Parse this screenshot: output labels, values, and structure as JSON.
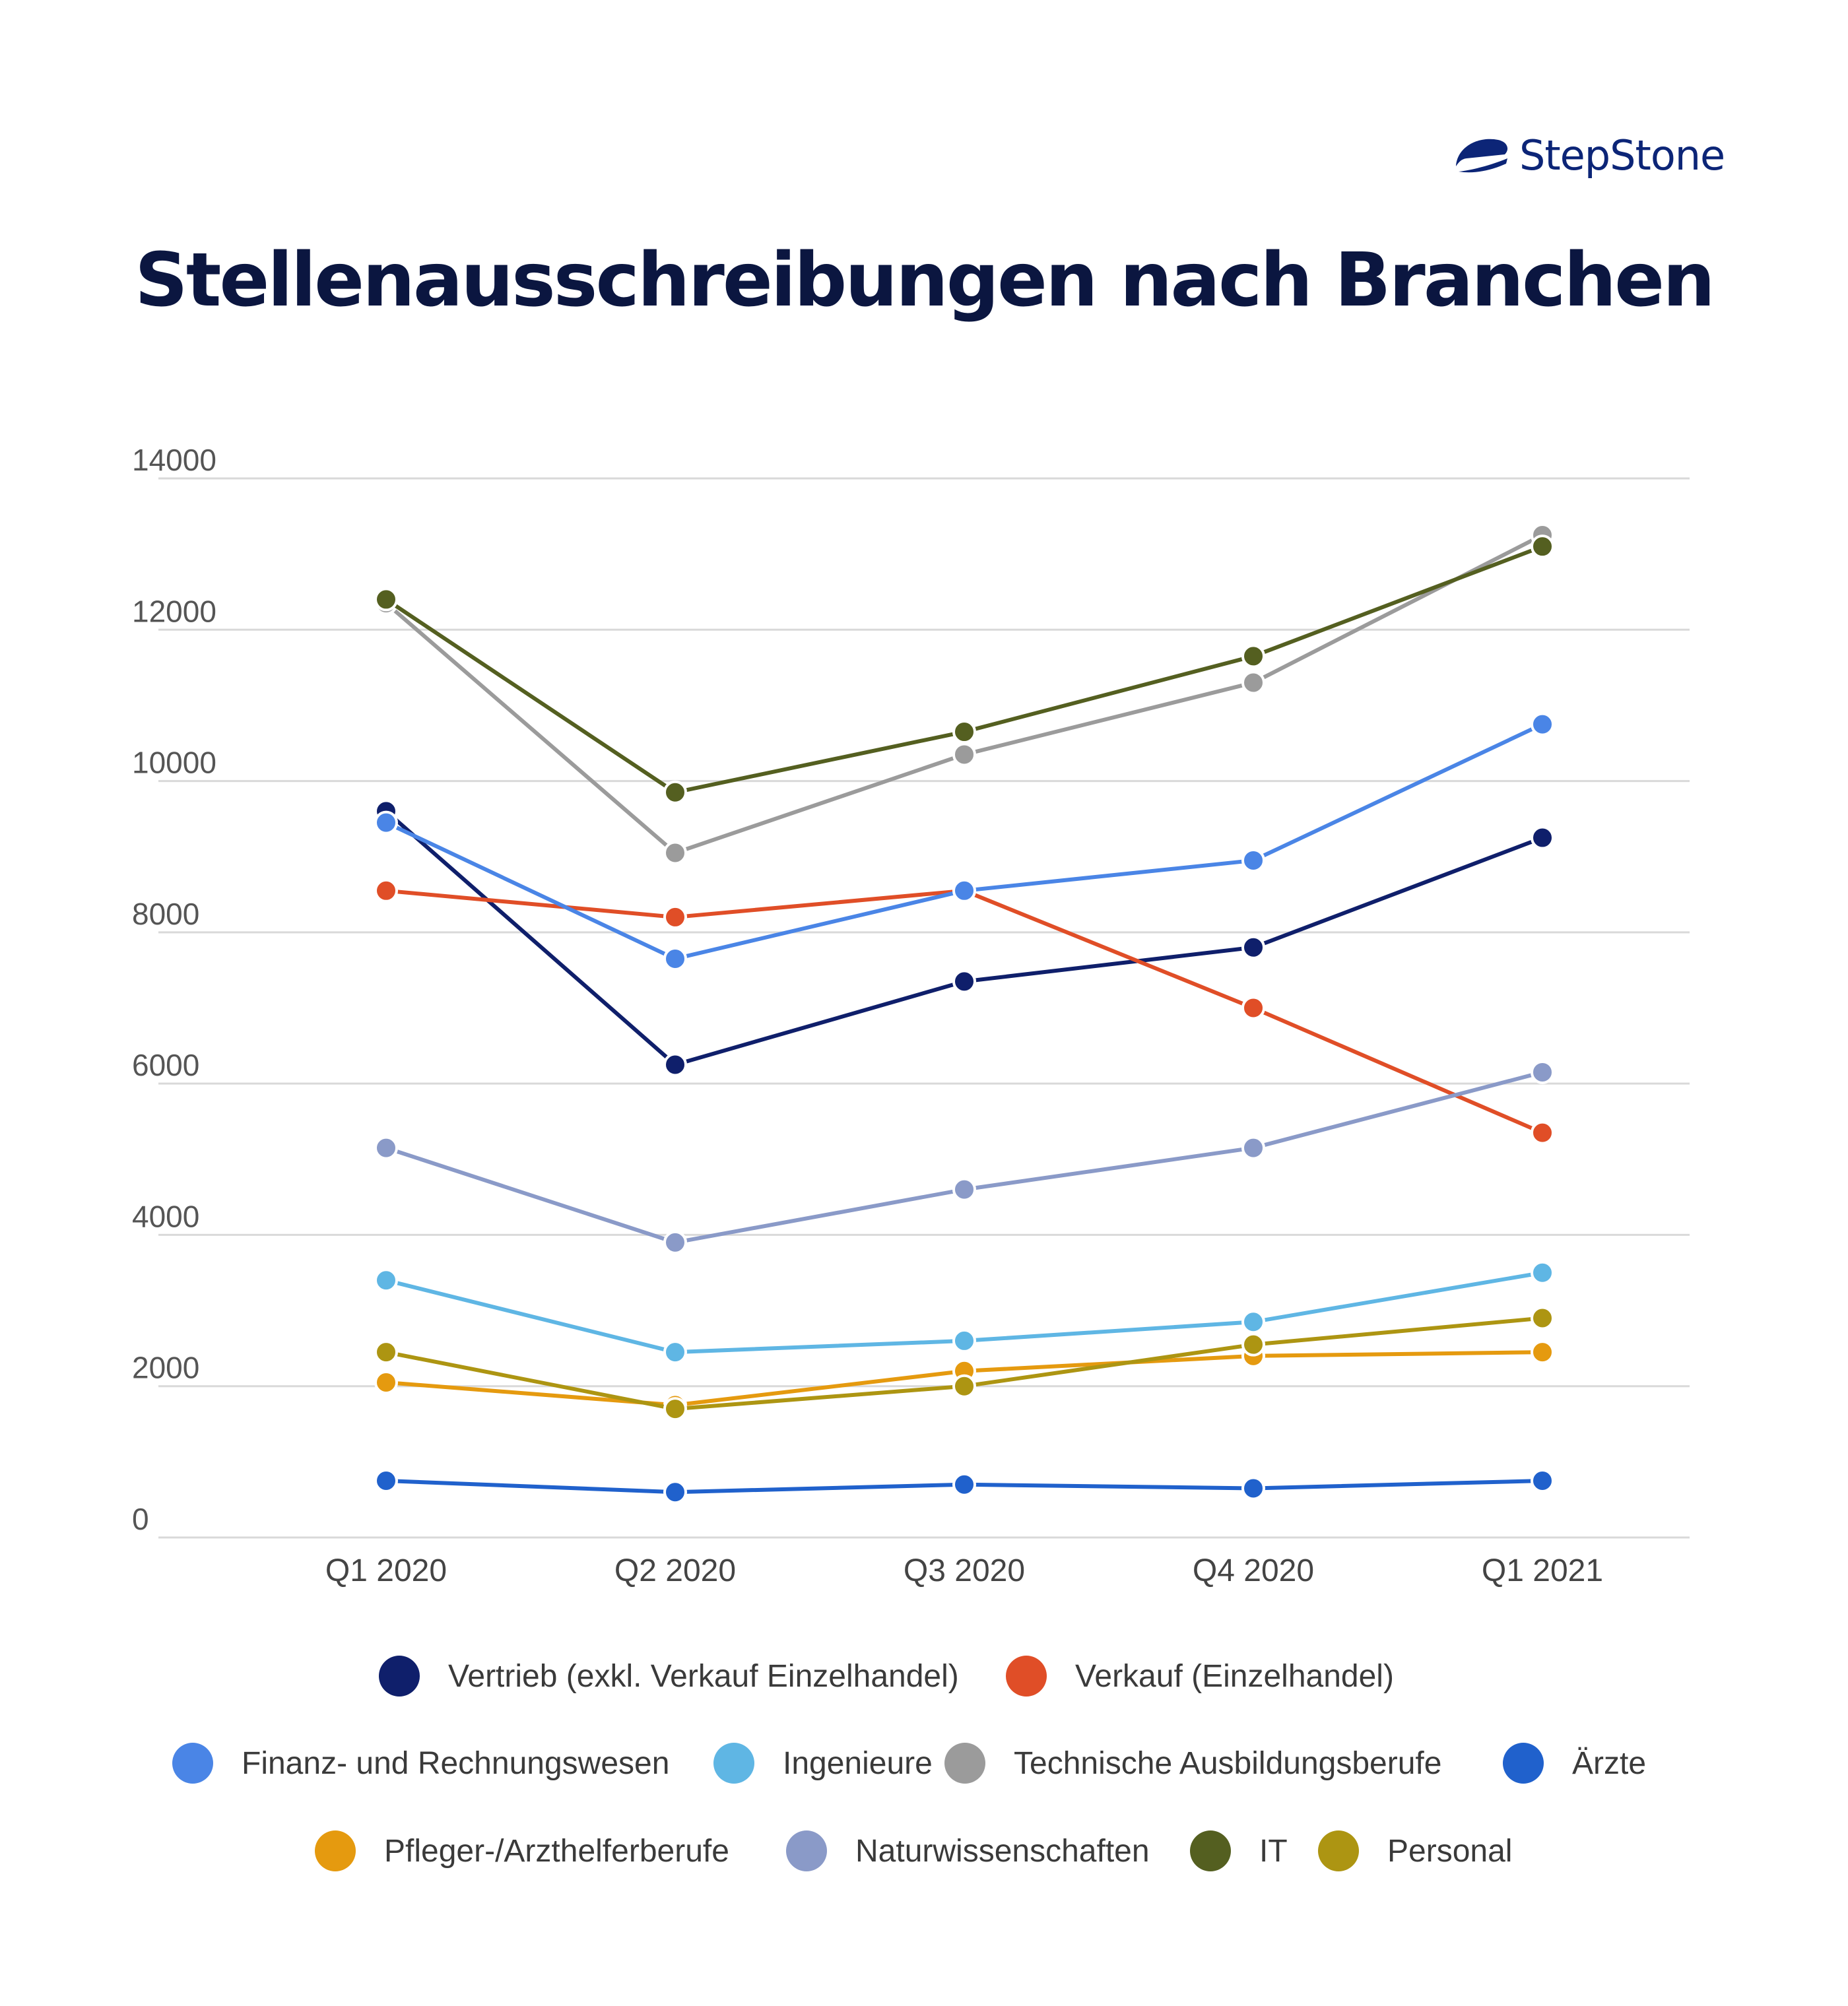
{
  "brand": {
    "name": "StepStone",
    "color": "#0c2577"
  },
  "chart_data": {
    "type": "line",
    "title": "Stellenausschreibungen nach Branchen",
    "xlabel": "",
    "ylabel": "",
    "categories": [
      "Q1 2020",
      "Q2 2020",
      "Q3 2020",
      "Q4 2020",
      "Q1 2021"
    ],
    "ylim": [
      0,
      14000
    ],
    "yticks": [
      0,
      2000,
      4000,
      6000,
      8000,
      10000,
      12000,
      14000
    ],
    "grid": true,
    "legend_position": "bottom",
    "series": [
      {
        "name": "Vertrieb (exkl. Verkauf Einzelhandel)",
        "color": "#0f1f6b",
        "values": [
          9600,
          6250,
          7350,
          7800,
          9250
        ]
      },
      {
        "name": "Verkauf (Einzelhandel)",
        "color": "#e04e27",
        "values": [
          8550,
          8200,
          8550,
          7000,
          5350
        ]
      },
      {
        "name": "Finanz- und Rechnungswesen",
        "color": "#4a85e6",
        "values": [
          9450,
          7650,
          8550,
          8950,
          10750
        ]
      },
      {
        "name": "Ingenieure",
        "color": "#5fb6e4",
        "values": [
          3400,
          2450,
          2600,
          2850,
          3500
        ]
      },
      {
        "name": "Technische Ausbildungsberufe",
        "color": "#9b9b9b",
        "values": [
          12350,
          9050,
          10350,
          11300,
          13250
        ]
      },
      {
        "name": "Ärzte",
        "color": "#2061cc",
        "values": [
          750,
          600,
          700,
          650,
          750
        ]
      },
      {
        "name": "Pfleger-/Arzthelferberufe",
        "color": "#e59a0f",
        "values": [
          2050,
          1750,
          2200,
          2400,
          2450
        ]
      },
      {
        "name": "Naturwissenschaften",
        "color": "#8a9ac8",
        "values": [
          5150,
          3900,
          4600,
          5150,
          6150
        ]
      },
      {
        "name": "IT",
        "color": "#545f20",
        "values": [
          12400,
          9850,
          10650,
          11650,
          13100
        ]
      },
      {
        "name": "Personal",
        "color": "#ad9512",
        "values": [
          2450,
          1700,
          2000,
          2550,
          2900
        ]
      }
    ]
  }
}
